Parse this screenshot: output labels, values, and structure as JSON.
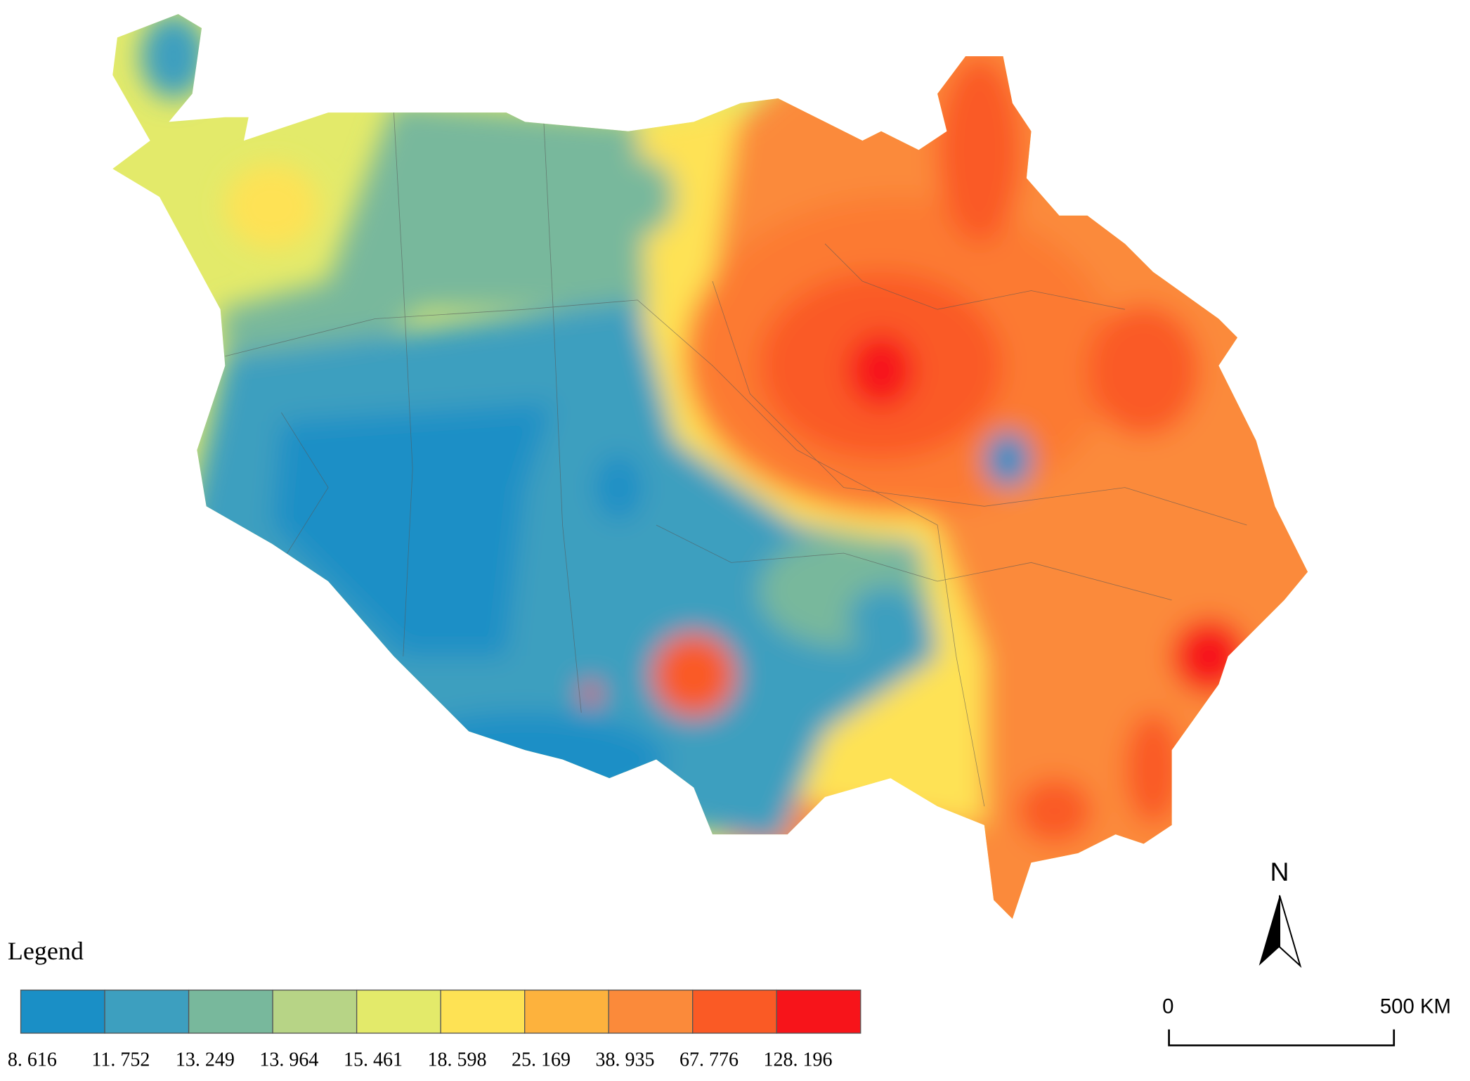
{
  "map": {
    "legend": {
      "title": "Legend",
      "colors": [
        "#1a8fc6",
        "#3d9fbf",
        "#78b89c",
        "#b7d486",
        "#e3ea6a",
        "#fee254",
        "#fdb23d",
        "#fb8a3a",
        "#fa5a25",
        "#f7141a"
      ],
      "breaks": [
        "8. 616",
        "11. 752",
        "13. 249",
        "13. 964",
        "15. 461",
        "18. 598",
        "25. 169",
        "38. 935",
        "67. 776",
        "128. 196"
      ]
    },
    "north_arrow": {
      "label": "N"
    },
    "scale_bar": {
      "labels": [
        "0",
        "500 KM"
      ]
    }
  }
}
